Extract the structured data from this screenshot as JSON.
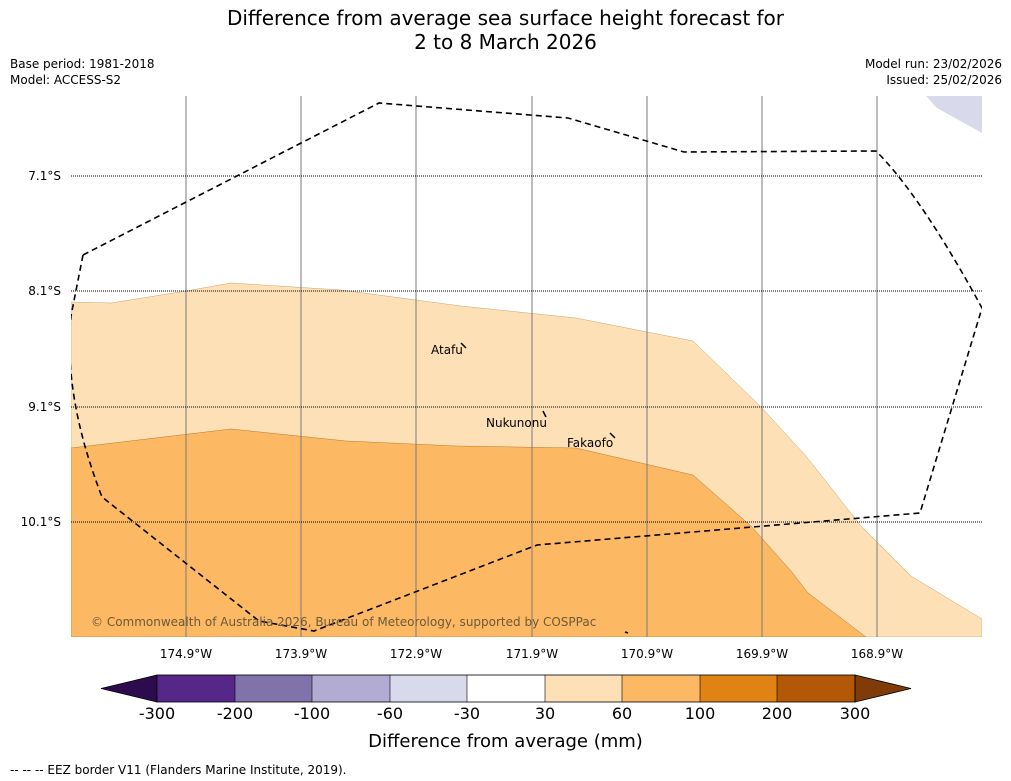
{
  "title_line1": "Difference from average sea surface height forecast for",
  "title_line2": "2 to 8 March 2026",
  "meta": {
    "base_period": "Base period: 1981-2018",
    "model": "Model: ACCESS-S2",
    "model_run": "Model run: 23/02/2026",
    "issued": "Issued: 25/02/2026"
  },
  "latitude_labels": [
    "7.1°S",
    "8.1°S",
    "9.1°S",
    "10.1°S"
  ],
  "longitude_labels": [
    "174.9°W",
    "173.9°W",
    "172.9°W",
    "171.9°W",
    "170.9°W",
    "169.9°W",
    "168.9°W"
  ],
  "places": {
    "atafu": "Atafu",
    "nukunonu": "Nukunonu",
    "fakaofo": "Fakaofo"
  },
  "copyright": "© Commonwealth of Australia 2026, Bureau of Meteorology, supported by COSPPac",
  "colorbar": {
    "title": "Difference from average (mm)",
    "ticks": [
      "-300",
      "-200",
      "-100",
      "-60",
      "-30",
      "30",
      "60",
      "100",
      "200",
      "300"
    ],
    "colors": {
      "extend_low": "#2d0b4e",
      "c1": "#542788",
      "c2": "#8073ac",
      "c3": "#b2abd2",
      "c4": "#d8daeb",
      "c5": "#ffffff",
      "c6": "#fee0b6",
      "c7": "#fdb863",
      "c8": "#e08214",
      "c9": "#b35806",
      "extend_high": "#7f3b08"
    }
  },
  "footnote": "-- -- -- EEZ border V11 (Flanders Marine Institute, 2019)."
}
